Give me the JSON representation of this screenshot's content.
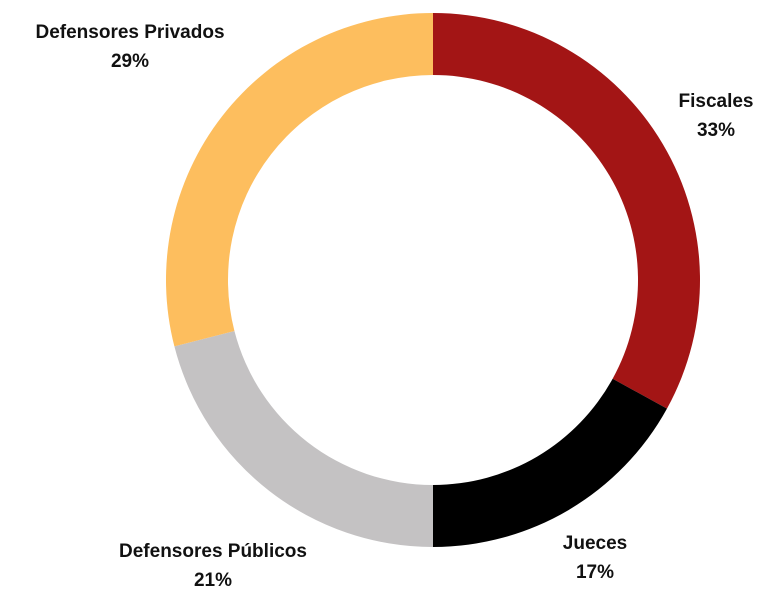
{
  "chart_data": {
    "type": "pie",
    "variant": "donut",
    "title": "",
    "legend": "none",
    "slices": [
      {
        "name": "Fiscales",
        "value": 33,
        "label": "33%",
        "color": "#A31515"
      },
      {
        "name": "Jueces",
        "value": 17,
        "label": "17%",
        "color": "#000000"
      },
      {
        "name": "Defensores Públicos",
        "value": 21,
        "label": "21%",
        "color": "#C4C2C3"
      },
      {
        "name": "Defensores Privados",
        "value": 29,
        "label": "29%",
        "color": "#FDBE5E"
      }
    ]
  }
}
